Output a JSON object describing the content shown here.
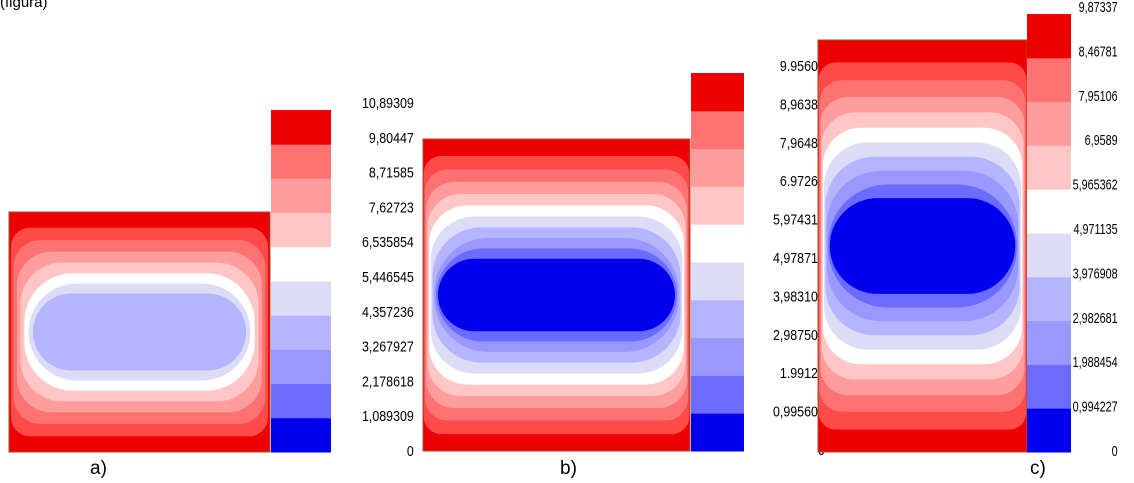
{
  "caption_fragment": "(figura)",
  "chart_data": [
    {
      "type": "heatmap",
      "panel_label": "a)",
      "colorbar_ticks": [
        "0",
        "1,089309",
        "2,178618",
        "3,267927",
        "4,357236",
        "5,446545",
        "6,535854",
        "7,62723",
        "8,71585",
        "9,80447",
        "10,89309"
      ],
      "levels": 10,
      "colors": [
        "#0000ee",
        "#6b6bff",
        "#9898ff",
        "#b4b4ff",
        "#dcdcf7",
        "#ffffff",
        "#ffc6c6",
        "#ff9c9c",
        "#ff7272",
        "#ff4a4a",
        "#ee0000"
      ],
      "center_level": 3
    },
    {
      "type": "heatmap",
      "panel_label": "b)",
      "colorbar_ticks": [
        "0",
        "0,995605",
        "1.99121",
        "2,987504",
        "3,983109",
        "4,978714",
        "5,974319",
        "6.97268",
        "7,96484",
        "8,96389",
        "9.95605"
      ],
      "levels": 10,
      "colors": [
        "#0000ee",
        "#6b6bff",
        "#9898ff",
        "#b4b4ff",
        "#dcdcf7",
        "#ffffff",
        "#ffc6c6",
        "#ff9c9c",
        "#ff7272",
        "#ff4a4a",
        "#ee0000"
      ],
      "center_level": 0
    },
    {
      "type": "heatmap",
      "panel_label": "c)",
      "colorbar_ticks": [
        "0",
        "0,994227",
        "1,988454",
        "2,982681",
        "3,976908",
        "4,971135",
        "5,965362",
        "6,9589",
        "7,95106",
        "8,46781",
        "9,87337"
      ],
      "levels": 10,
      "colors": [
        "#0000ee",
        "#6b6bff",
        "#9898ff",
        "#b4b4ff",
        "#dcdcf7",
        "#ffffff",
        "#ffc6c6",
        "#ff9c9c",
        "#ff7272",
        "#ff4a4a",
        "#ee0000"
      ],
      "center_level": 0
    }
  ]
}
